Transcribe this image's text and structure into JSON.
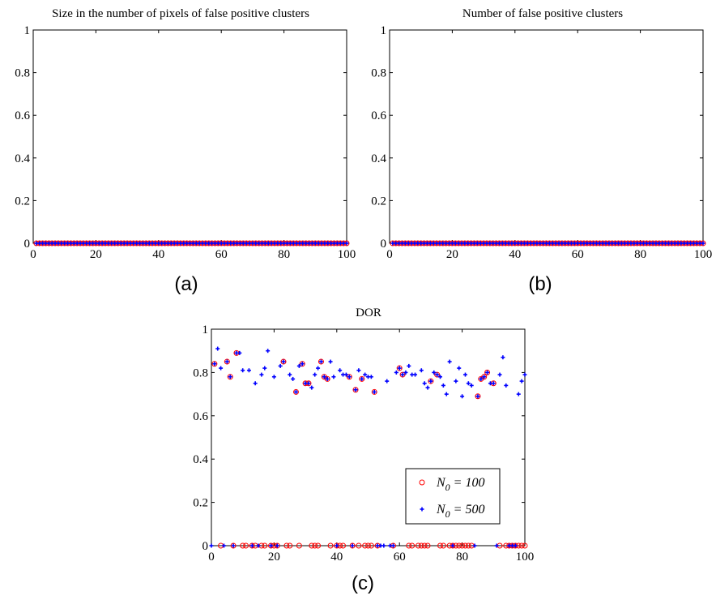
{
  "panels": [
    {
      "caption": "(a)",
      "chart_data": {
        "type": "scatter",
        "title": "Size in the number of pixels of false positive clusters",
        "xlabel": "",
        "ylabel": "",
        "xlim": [
          0,
          100
        ],
        "ylim": [
          0,
          1
        ],
        "xticks": [
          "0",
          "20",
          "40",
          "60",
          "80",
          "100"
        ],
        "yticks": [
          "0",
          "0.2",
          "0.4",
          "0.6",
          "0.8",
          "1"
        ],
        "grid": false,
        "legend": null,
        "series": [
          {
            "marker": "circle",
            "color": "#ff0000",
            "x_range": [
              1,
              100
            ],
            "y": 0
          },
          {
            "marker": "plus",
            "color": "#0000ff",
            "x_range": [
              1,
              100
            ],
            "y": 0
          }
        ]
      }
    },
    {
      "caption": "(b)",
      "chart_data": {
        "type": "scatter",
        "title": "Number of false positive clusters",
        "xlabel": "",
        "ylabel": "",
        "xlim": [
          0,
          100
        ],
        "ylim": [
          0,
          1
        ],
        "xticks": [
          "0",
          "20",
          "40",
          "60",
          "80",
          "100"
        ],
        "yticks": [
          "0",
          "0.2",
          "0.4",
          "0.6",
          "0.8",
          "1"
        ],
        "grid": false,
        "legend": null,
        "series": [
          {
            "marker": "circle",
            "color": "#ff0000",
            "x_range": [
              1,
              100
            ],
            "y": 0
          },
          {
            "marker": "plus",
            "color": "#0000ff",
            "x_range": [
              1,
              100
            ],
            "y": 0
          }
        ]
      }
    },
    {
      "caption": "(c)",
      "chart_data": {
        "type": "scatter",
        "title": "DOR",
        "xlabel": "",
        "ylabel": "",
        "xlim": [
          0,
          100
        ],
        "ylim": [
          0,
          1
        ],
        "xticks": [
          "0",
          "20",
          "40",
          "60",
          "80",
          "100"
        ],
        "yticks": [
          "0",
          "0.2",
          "0.4",
          "0.6",
          "0.8",
          "1"
        ],
        "grid": false,
        "legend": {
          "position": "lower-right"
        },
        "series": [
          {
            "legend_label": "= 100",
            "legend_symbol": "N",
            "legend_subscript": "0",
            "marker": "circle",
            "color": "#ff0000",
            "points": [
              [
                1,
                0.84
              ],
              [
                3,
                0
              ],
              [
                5,
                0.85
              ],
              [
                6,
                0.78
              ],
              [
                7,
                0
              ],
              [
                8,
                0.89
              ],
              [
                10,
                0
              ],
              [
                11,
                0
              ],
              [
                13,
                0
              ],
              [
                14,
                0
              ],
              [
                16,
                0
              ],
              [
                17,
                0
              ],
              [
                19,
                0
              ],
              [
                20,
                0
              ],
              [
                21,
                0
              ],
              [
                23,
                0.85
              ],
              [
                24,
                0
              ],
              [
                25,
                0
              ],
              [
                27,
                0.71
              ],
              [
                28,
                0
              ],
              [
                29,
                0.84
              ],
              [
                30,
                0.75
              ],
              [
                31,
                0.75
              ],
              [
                32,
                0
              ],
              [
                33,
                0
              ],
              [
                34,
                0
              ],
              [
                35,
                0.85
              ],
              [
                36,
                0.78
              ],
              [
                37,
                0.77
              ],
              [
                38,
                0
              ],
              [
                40,
                0
              ],
              [
                41,
                0
              ],
              [
                42,
                0
              ],
              [
                44,
                0.78
              ],
              [
                45,
                0
              ],
              [
                46,
                0.72
              ],
              [
                47,
                0
              ],
              [
                48,
                0.77
              ],
              [
                49,
                0
              ],
              [
                50,
                0
              ],
              [
                51,
                0
              ],
              [
                52,
                0.71
              ],
              [
                53,
                0
              ],
              [
                58,
                0
              ],
              [
                60,
                0.82
              ],
              [
                61,
                0.79
              ],
              [
                63,
                0
              ],
              [
                64,
                0
              ],
              [
                66,
                0
              ],
              [
                67,
                0
              ],
              [
                68,
                0
              ],
              [
                69,
                0
              ],
              [
                70,
                0.76
              ],
              [
                72,
                0.79
              ],
              [
                73,
                0
              ],
              [
                74,
                0
              ],
              [
                76,
                0
              ],
              [
                77,
                0
              ],
              [
                78,
                0
              ],
              [
                79,
                0
              ],
              [
                80,
                0
              ],
              [
                81,
                0
              ],
              [
                82,
                0
              ],
              [
                83,
                0
              ],
              [
                85,
                0.69
              ],
              [
                86,
                0.77
              ],
              [
                87,
                0.78
              ],
              [
                88,
                0.8
              ],
              [
                90,
                0.75
              ],
              [
                92,
                0
              ],
              [
                94,
                0
              ],
              [
                95,
                0
              ],
              [
                96,
                0
              ],
              [
                97,
                0
              ],
              [
                98,
                0
              ],
              [
                99,
                0
              ],
              [
                100,
                0
              ]
            ]
          },
          {
            "legend_label": "= 500",
            "legend_symbol": "N",
            "legend_subscript": "0",
            "marker": "plus",
            "color": "#0000ff",
            "points": [
              [
                0,
                0
              ],
              [
                1,
                0.84
              ],
              [
                2,
                0.91
              ],
              [
                3,
                0.82
              ],
              [
                4,
                0
              ],
              [
                5,
                0.85
              ],
              [
                6,
                0.78
              ],
              [
                7,
                0
              ],
              [
                8,
                0.89
              ],
              [
                9,
                0.89
              ],
              [
                10,
                0.81
              ],
              [
                12,
                0.81
              ],
              [
                13,
                0
              ],
              [
                14,
                0.75
              ],
              [
                15,
                0
              ],
              [
                16,
                0.79
              ],
              [
                17,
                0.82
              ],
              [
                18,
                0.9
              ],
              [
                19,
                0
              ],
              [
                20,
                0.78
              ],
              [
                21,
                0
              ],
              [
                22,
                0.83
              ],
              [
                23,
                0.85
              ],
              [
                25,
                0.79
              ],
              [
                26,
                0.77
              ],
              [
                27,
                0.71
              ],
              [
                28,
                0.83
              ],
              [
                29,
                0.84
              ],
              [
                30,
                0.75
              ],
              [
                31,
                0.75
              ],
              [
                32,
                0.73
              ],
              [
                33,
                0.79
              ],
              [
                34,
                0.82
              ],
              [
                35,
                0.85
              ],
              [
                36,
                0.78
              ],
              [
                37,
                0.77
              ],
              [
                38,
                0.85
              ],
              [
                39,
                0.78
              ],
              [
                40,
                0
              ],
              [
                41,
                0.81
              ],
              [
                42,
                0.79
              ],
              [
                43,
                0.79
              ],
              [
                44,
                0.78
              ],
              [
                45,
                0
              ],
              [
                46,
                0.72
              ],
              [
                47,
                0.81
              ],
              [
                48,
                0.77
              ],
              [
                49,
                0.79
              ],
              [
                50,
                0.78
              ],
              [
                51,
                0.78
              ],
              [
                52,
                0.71
              ],
              [
                53,
                0
              ],
              [
                54,
                0
              ],
              [
                55,
                0
              ],
              [
                56,
                0.76
              ],
              [
                57,
                0
              ],
              [
                58,
                0
              ],
              [
                59,
                0.8
              ],
              [
                60,
                0.82
              ],
              [
                61,
                0.79
              ],
              [
                62,
                0.8
              ],
              [
                63,
                0.83
              ],
              [
                64,
                0.79
              ],
              [
                65,
                0.79
              ],
              [
                67,
                0.81
              ],
              [
                68,
                0.75
              ],
              [
                69,
                0.73
              ],
              [
                70,
                0.76
              ],
              [
                71,
                0.8
              ],
              [
                72,
                0.79
              ],
              [
                73,
                0.78
              ],
              [
                74,
                0.74
              ],
              [
                75,
                0.7
              ],
              [
                76,
                0.85
              ],
              [
                77,
                0
              ],
              [
                78,
                0.76
              ],
              [
                79,
                0.82
              ],
              [
                80,
                0.69
              ],
              [
                81,
                0.79
              ],
              [
                82,
                0.75
              ],
              [
                83,
                0.74
              ],
              [
                84,
                0
              ],
              [
                85,
                0.69
              ],
              [
                86,
                0.77
              ],
              [
                87,
                0.78
              ],
              [
                88,
                0.8
              ],
              [
                89,
                0.75
              ],
              [
                90,
                0.75
              ],
              [
                91,
                0
              ],
              [
                92,
                0.79
              ],
              [
                93,
                0.87
              ],
              [
                94,
                0.74
              ],
              [
                95,
                0
              ],
              [
                96,
                0
              ],
              [
                97,
                0
              ],
              [
                98,
                0.7
              ],
              [
                99,
                0.76
              ],
              [
                100,
                0.79
              ]
            ]
          }
        ]
      }
    }
  ]
}
